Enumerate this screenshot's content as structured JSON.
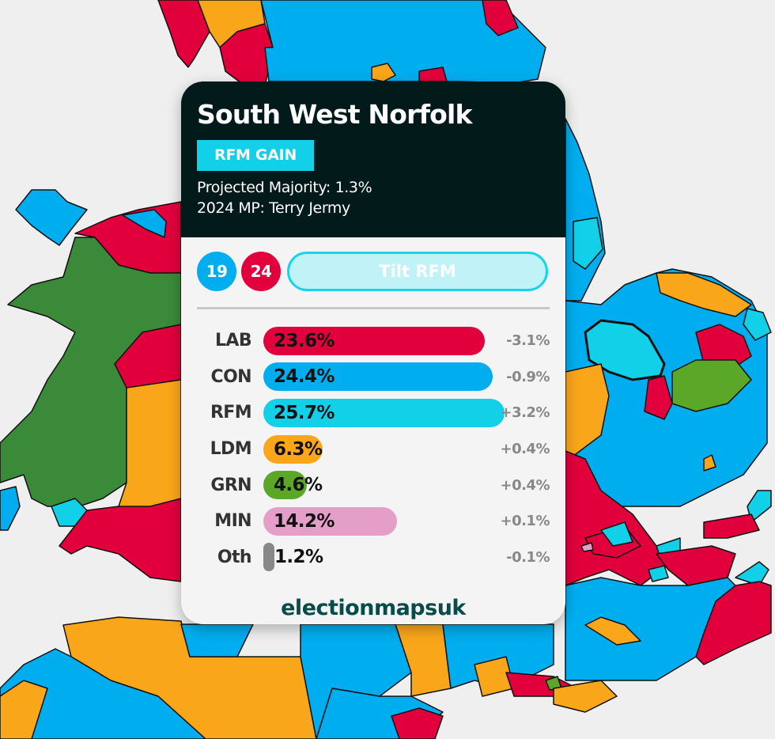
{
  "map": {
    "colors": {
      "lab": "#e2003c",
      "con": "#00aeef",
      "rfm": "#12d0e8",
      "ldm": "#faa61a",
      "grn": "#5ba829",
      "plaid": "#3a8a3a",
      "min": "#e59ec7",
      "sea": "#efefef",
      "border": "#111111"
    }
  },
  "card": {
    "constituency": "South West Norfolk",
    "result_badge": "RFM GAIN",
    "result_badge_color": "#12d0e8",
    "projected_majority": "Projected Majority: 1.3%",
    "mp_2024": "2024 MP: Terry Jermy",
    "seat_counts": [
      {
        "value": "19",
        "color": "#00aeef"
      },
      {
        "value": "24",
        "color": "#e2003c"
      }
    ],
    "rating_label": "Tilt RFM",
    "brand": "electionmapsuk"
  },
  "chart_data": {
    "type": "bar",
    "title": "South West Norfolk",
    "orientation": "horizontal",
    "categories": [
      "LAB",
      "CON",
      "RFM",
      "LDM",
      "GRN",
      "MIN",
      "Oth"
    ],
    "values": [
      23.6,
      24.4,
      25.7,
      6.3,
      4.6,
      14.2,
      1.2
    ],
    "changes": [
      "-3.1%",
      "-0.9%",
      "+3.2%",
      "+0.4%",
      "+0.4%",
      "+0.1%",
      "-0.1%"
    ],
    "colors": [
      "#e2003c",
      "#00aeef",
      "#12d0e8",
      "#faa61a",
      "#5ba829",
      "#e59ec7",
      "#888888"
    ],
    "xlabel": "",
    "ylabel": "",
    "grid": false
  },
  "parties": [
    {
      "label": "LAB",
      "value": "23.6%",
      "pct": 23.6,
      "change": "-3.1%",
      "color": "#e2003c"
    },
    {
      "label": "CON",
      "value": "24.4%",
      "pct": 24.4,
      "change": "-0.9%",
      "color": "#00aeef"
    },
    {
      "label": "RFM",
      "value": "25.7%",
      "pct": 25.7,
      "change": "+3.2%",
      "color": "#12d0e8"
    },
    {
      "label": "LDM",
      "value": "6.3%",
      "pct": 6.3,
      "change": "+0.4%",
      "color": "#faa61a"
    },
    {
      "label": "GRN",
      "value": "4.6%",
      "pct": 4.6,
      "change": "+0.4%",
      "color": "#5ba829"
    },
    {
      "label": "MIN",
      "value": "14.2%",
      "pct": 14.2,
      "change": "+0.1%",
      "color": "#e59ec7"
    },
    {
      "label": "Oth",
      "value": "1.2%",
      "pct": 1.2,
      "change": "-0.1%",
      "color": "#888888"
    }
  ]
}
